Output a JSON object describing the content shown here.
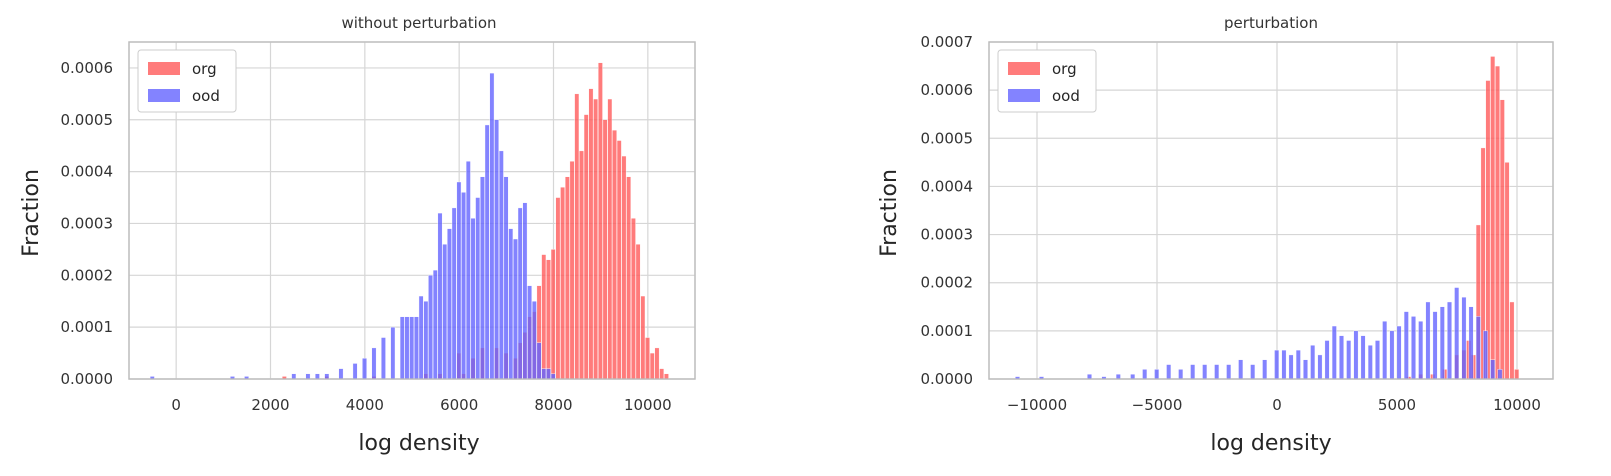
{
  "chart_data": [
    {
      "type": "bar",
      "title": "without perturbation",
      "xlabel": "log density",
      "ylabel": "Fraction",
      "xlim": [
        -1000,
        11000
      ],
      "ylim": [
        0,
        0.00065
      ],
      "xticks": [
        0,
        2000,
        4000,
        6000,
        8000,
        10000
      ],
      "xtick_labels": [
        "0",
        "2000",
        "4000",
        "6000",
        "8000",
        "10000"
      ],
      "yticks": [
        0,
        0.0001,
        0.0002,
        0.0003,
        0.0004,
        0.0005,
        0.0006
      ],
      "ytick_labels": [
        "0.0000",
        "0.0001",
        "0.0002",
        "0.0003",
        "0.0004",
        "0.0005",
        "0.0006"
      ],
      "grid": true,
      "legend": "top-left",
      "bin_width": 105,
      "series": [
        {
          "name": "org",
          "color": "#ff5a5a",
          "x": [
            2300,
            3200,
            4200,
            5300,
            5600,
            6000,
            6100,
            6300,
            6500,
            6800,
            7000,
            7200,
            7300,
            7400,
            7500,
            7600,
            7700,
            7800,
            7900,
            8000,
            8100,
            8200,
            8300,
            8400,
            8500,
            8600,
            8700,
            8800,
            8900,
            9000,
            9100,
            9200,
            9300,
            9400,
            9500,
            9600,
            9700,
            9800,
            9900,
            10000,
            10100,
            10200,
            10300,
            10400
          ],
          "values": [
            5e-06,
            5e-06,
            5e-06,
            1e-05,
            1e-05,
            5e-05,
            1e-05,
            4e-05,
            6e-05,
            6e-05,
            5e-05,
            4e-05,
            7e-05,
            9e-05,
            0.00012,
            0.00013,
            0.00018,
            0.00024,
            0.00023,
            0.00025,
            0.00035,
            0.00037,
            0.00039,
            0.00042,
            0.00055,
            0.00044,
            0.00051,
            0.00056,
            0.00054,
            0.00061,
            0.0005,
            0.00054,
            0.00048,
            0.00046,
            0.00043,
            0.00039,
            0.00031,
            0.00026,
            0.00016,
            8e-05,
            5e-05,
            6e-05,
            2e-05,
            1e-05
          ]
        },
        {
          "name": "ood",
          "color": "#6464ff",
          "x": [
            -500,
            1200,
            1500,
            2500,
            2800,
            3000,
            3200,
            3500,
            3800,
            4000,
            4200,
            4400,
            4600,
            4800,
            4900,
            5000,
            5100,
            5200,
            5300,
            5400,
            5500,
            5600,
            5700,
            5800,
            5900,
            6000,
            6100,
            6200,
            6300,
            6400,
            6500,
            6600,
            6700,
            6800,
            6900,
            7000,
            7100,
            7200,
            7300,
            7400,
            7500,
            7600,
            7700,
            7800,
            7900,
            8000
          ],
          "values": [
            5e-06,
            5e-06,
            5e-06,
            1e-05,
            1e-05,
            1e-05,
            1e-05,
            2e-05,
            3e-05,
            4e-05,
            6e-05,
            8e-05,
            0.0001,
            0.00012,
            0.00012,
            0.00012,
            0.00012,
            0.00016,
            0.00015,
            0.0002,
            0.00021,
            0.00032,
            0.00026,
            0.00029,
            0.00033,
            0.00038,
            0.00036,
            0.00042,
            0.00031,
            0.00035,
            0.00039,
            0.00049,
            0.00059,
            0.0005,
            0.00044,
            0.00039,
            0.00029,
            0.00027,
            0.00033,
            0.00034,
            0.00018,
            0.00015,
            7e-05,
            2e-05,
            2e-05,
            1e-05
          ]
        }
      ]
    },
    {
      "type": "bar",
      "title": "perturbation",
      "xlabel": "log density",
      "ylabel": "Fraction",
      "xlim": [
        -12000,
        11500
      ],
      "ylim": [
        0,
        0.0007
      ],
      "xticks": [
        -10000,
        -5000,
        0,
        5000,
        10000
      ],
      "xtick_labels": [
        "−10000",
        "−5000",
        "0",
        "5000",
        "10000"
      ],
      "yticks": [
        0,
        0.0001,
        0.0002,
        0.0003,
        0.0004,
        0.0005,
        0.0006,
        0.0007
      ],
      "ytick_labels": [
        "0.0000",
        "0.0001",
        "0.0002",
        "0.0003",
        "0.0004",
        "0.0005",
        "0.0006",
        "0.0007"
      ],
      "grid": true,
      "legend": "top-left",
      "bin_width": 210,
      "series": [
        {
          "name": "org",
          "color": "#ff5a5a",
          "x": [
            5500,
            6000,
            6500,
            7000,
            7500,
            7800,
            8000,
            8200,
            8400,
            8600,
            8800,
            9000,
            9200,
            9400,
            9600,
            9800,
            10000
          ],
          "values": [
            5e-06,
            1e-05,
            1e-05,
            2e-05,
            5e-05,
            6e-05,
            8e-05,
            5e-05,
            0.00032,
            0.00048,
            0.00062,
            0.00067,
            0.00065,
            0.00058,
            0.00045,
            0.00016,
            2e-05
          ]
        },
        {
          "name": "ood",
          "color": "#6464ff",
          "x": [
            -10800,
            -9800,
            -7800,
            -7200,
            -6600,
            -6000,
            -5500,
            -5000,
            -4500,
            -4000,
            -3500,
            -3000,
            -2500,
            -2000,
            -1500,
            -1000,
            -500,
            0,
            300,
            600,
            900,
            1200,
            1500,
            1800,
            2100,
            2400,
            2700,
            3000,
            3300,
            3600,
            3900,
            4200,
            4500,
            4800,
            5100,
            5400,
            5700,
            6000,
            6300,
            6600,
            6900,
            7200,
            7500,
            7800,
            8100,
            8400,
            8700,
            9000,
            9300
          ],
          "values": [
            5e-06,
            5e-06,
            1e-05,
            5e-06,
            1e-05,
            1e-05,
            2e-05,
            2e-05,
            3e-05,
            2e-05,
            3e-05,
            3e-05,
            3e-05,
            3e-05,
            4e-05,
            3e-05,
            4e-05,
            6e-05,
            6e-05,
            5e-05,
            6e-05,
            4e-05,
            7e-05,
            5e-05,
            8e-05,
            0.00011,
            9e-05,
            8e-05,
            0.0001,
            9e-05,
            7e-05,
            8e-05,
            0.00012,
            0.0001,
            0.00011,
            0.00014,
            0.00013,
            0.00012,
            0.00016,
            0.00014,
            0.00015,
            0.00016,
            0.00019,
            0.00017,
            0.00015,
            0.00013,
            0.0001,
            4e-05,
            2e-05
          ]
        }
      ]
    }
  ]
}
